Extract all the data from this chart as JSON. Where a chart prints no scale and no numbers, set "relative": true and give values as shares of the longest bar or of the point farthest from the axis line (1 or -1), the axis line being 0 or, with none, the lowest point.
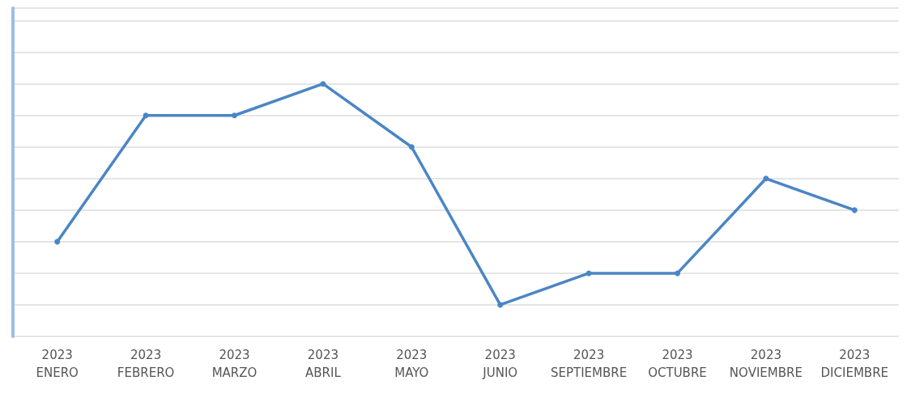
{
  "chart_data": {
    "type": "line",
    "relative": true,
    "categories": [
      "2023\nENERO",
      "2023\nFEBRERO",
      "2023\nMARZO",
      "2023\nABRIL",
      "2023\nMAYO",
      "2023\nJUNIO",
      "2023\nSEPTIEMBRE",
      "2023\nOCTUBRE",
      "2023\nNOVIEMBRE",
      "2023\nDICIEMBRE"
    ],
    "series": [
      {
        "color": "#4a86c5",
        "values": [
          0.375,
          0.875,
          0.875,
          1,
          0.75,
          0.125,
          0.25,
          0.25,
          0.625,
          0.5
        ]
      }
    ],
    "grid": "y",
    "marker": "circle",
    "line_style": "solid"
  }
}
